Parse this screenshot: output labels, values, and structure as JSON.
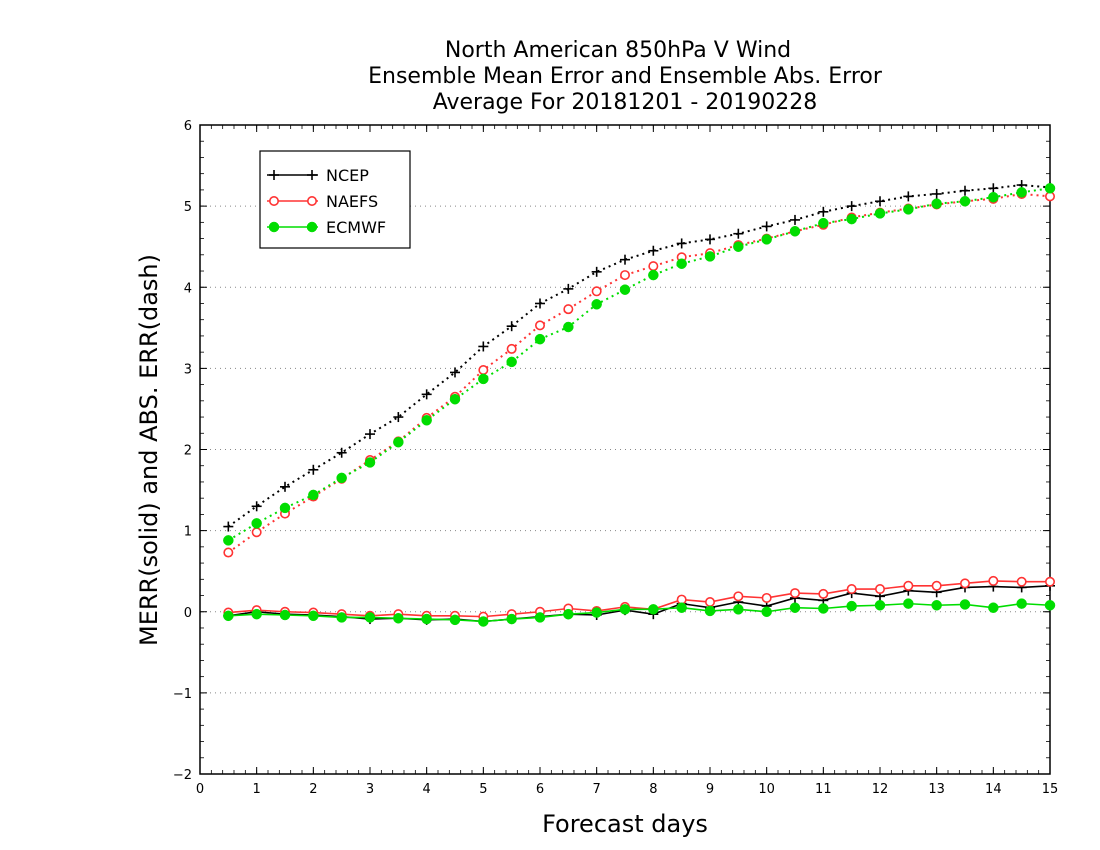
{
  "chart_data": {
    "type": "line",
    "title": [
      "North American 850hPa V Wind",
      "Ensemble Mean Error and Ensemble Abs. Error",
      "Average For 20181201 - 20190228"
    ],
    "xlabel": "Forecast days",
    "ylabel": "MERR(solid) and ABS. ERR(dash)",
    "xlim": [
      0,
      15
    ],
    "ylim": [
      -2,
      6
    ],
    "xticks": [
      "0",
      "1",
      "2",
      "3",
      "4",
      "5",
      "6",
      "7",
      "8",
      "9",
      "10",
      "11",
      "12",
      "13",
      "14",
      "15"
    ],
    "yticks": [
      "−2",
      "−1",
      "0",
      "1",
      "2",
      "3",
      "4",
      "5",
      "6"
    ],
    "grid": "horizontal dotted",
    "legend_position": "top-left",
    "x": [
      0.5,
      1,
      1.5,
      2,
      2.5,
      3,
      3.5,
      4,
      4.5,
      5,
      5.5,
      6,
      6.5,
      7,
      7.5,
      8,
      8.5,
      9,
      9.5,
      10,
      10.5,
      11,
      11.5,
      12,
      12.5,
      13,
      13.5,
      14,
      14.5,
      15
    ],
    "series": [
      {
        "name": "NCEP",
        "color": "#000000",
        "marker": "plus",
        "abs_err": [
          1.05,
          1.3,
          1.54,
          1.75,
          1.96,
          2.19,
          2.4,
          2.68,
          2.95,
          3.27,
          3.52,
          3.8,
          3.98,
          4.19,
          4.34,
          4.45,
          4.54,
          4.59,
          4.66,
          4.75,
          4.83,
          4.93,
          5.0,
          5.06,
          5.12,
          5.15,
          5.19,
          5.22,
          5.26,
          5.23
        ],
        "mean_err": [
          -0.05,
          0.0,
          -0.03,
          -0.04,
          -0.06,
          -0.09,
          -0.08,
          -0.1,
          -0.09,
          -0.12,
          -0.09,
          -0.06,
          -0.03,
          -0.04,
          0.02,
          -0.03,
          0.1,
          0.05,
          0.12,
          0.07,
          0.17,
          0.14,
          0.23,
          0.19,
          0.26,
          0.24,
          0.3,
          0.31,
          0.3,
          0.32
        ]
      },
      {
        "name": "NAEFS",
        "color": "#ff3333",
        "marker": "open-circle",
        "abs_err": [
          0.73,
          0.98,
          1.21,
          1.42,
          1.64,
          1.87,
          2.1,
          2.39,
          2.65,
          2.98,
          3.24,
          3.53,
          3.73,
          3.95,
          4.15,
          4.26,
          4.37,
          4.42,
          4.52,
          4.6,
          4.69,
          4.77,
          4.86,
          4.92,
          4.97,
          5.02,
          5.06,
          5.09,
          5.15,
          5.12
        ],
        "mean_err": [
          -0.01,
          0.02,
          0.0,
          -0.01,
          -0.03,
          -0.05,
          -0.03,
          -0.05,
          -0.05,
          -0.06,
          -0.03,
          0.0,
          0.04,
          0.01,
          0.06,
          0.03,
          0.15,
          0.12,
          0.19,
          0.17,
          0.23,
          0.22,
          0.28,
          0.28,
          0.32,
          0.32,
          0.35,
          0.38,
          0.37,
          0.37
        ]
      },
      {
        "name": "ECMWF",
        "color": "#00dd00",
        "marker": "filled-circle",
        "abs_err": [
          0.88,
          1.09,
          1.28,
          1.44,
          1.65,
          1.84,
          2.09,
          2.36,
          2.62,
          2.87,
          3.08,
          3.36,
          3.51,
          3.79,
          3.97,
          4.15,
          4.29,
          4.38,
          4.5,
          4.59,
          4.69,
          4.79,
          4.84,
          4.91,
          4.96,
          5.03,
          5.06,
          5.11,
          5.17,
          5.22
        ],
        "mean_err": [
          -0.05,
          -0.03,
          -0.04,
          -0.05,
          -0.07,
          -0.07,
          -0.08,
          -0.09,
          -0.1,
          -0.12,
          -0.09,
          -0.07,
          -0.03,
          -0.01,
          0.03,
          0.03,
          0.05,
          0.01,
          0.03,
          0.0,
          0.05,
          0.04,
          0.07,
          0.08,
          0.1,
          0.08,
          0.09,
          0.05,
          0.1,
          0.08
        ]
      }
    ]
  }
}
